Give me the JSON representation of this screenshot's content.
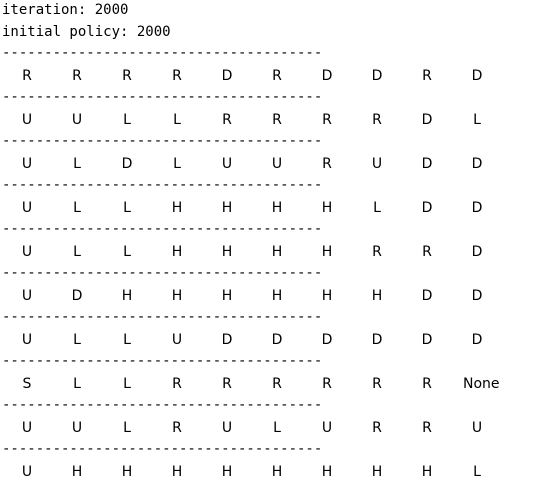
{
  "header": {
    "iteration_line": "iteration: 2000",
    "initial_policy_line": "initial policy: 2000"
  },
  "divider": "--------------------------------------",
  "grid": [
    [
      "R",
      "R",
      "R",
      "R",
      "D",
      "R",
      "D",
      "D",
      "R",
      "D"
    ],
    [
      "U",
      "U",
      "L",
      "L",
      "R",
      "R",
      "R",
      "R",
      "D",
      "L"
    ],
    [
      "U",
      "L",
      "D",
      "L",
      "U",
      "U",
      "R",
      "U",
      "D",
      "D"
    ],
    [
      "U",
      "L",
      "L",
      "H",
      "H",
      "H",
      "H",
      "L",
      "D",
      "D"
    ],
    [
      "U",
      "L",
      "L",
      "H",
      "H",
      "H",
      "H",
      "R",
      "R",
      "D"
    ],
    [
      "U",
      "D",
      "H",
      "H",
      "H",
      "H",
      "H",
      "H",
      "D",
      "D"
    ],
    [
      "U",
      "L",
      "L",
      "U",
      "D",
      "D",
      "D",
      "D",
      "D",
      "D"
    ],
    [
      "S",
      "L",
      "L",
      "R",
      "R",
      "R",
      "R",
      "R",
      "R",
      "None"
    ],
    [
      "U",
      "U",
      "L",
      "R",
      "U",
      "L",
      "U",
      "R",
      "R",
      "U"
    ],
    [
      "U",
      "H",
      "H",
      "H",
      "H",
      "H",
      "H",
      "H",
      "H",
      "L"
    ]
  ]
}
